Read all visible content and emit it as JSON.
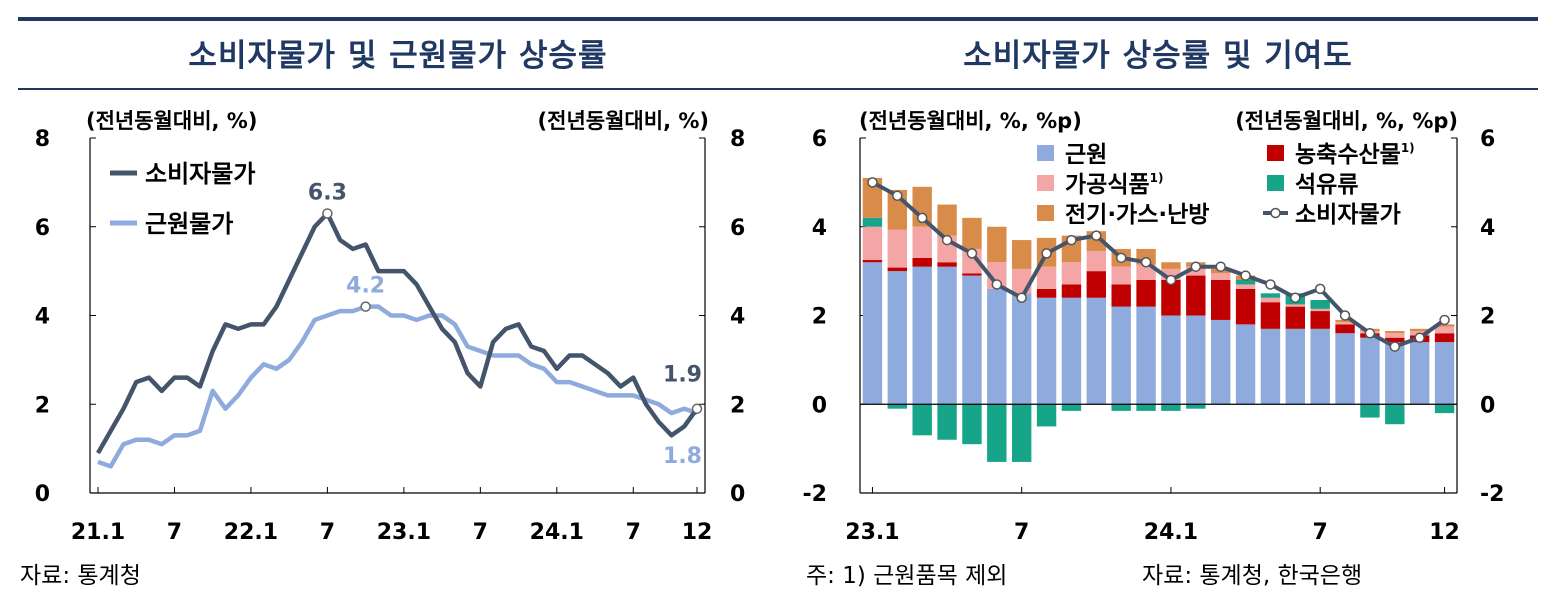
{
  "left_panel": {
    "title": "소비자물가 및 근원물가 상승률",
    "source": "자료: 통계청",
    "chart_data": {
      "type": "line",
      "title": "소비자물가 및 근원물가 상승률",
      "left_unit": "(전년동월대비, %)",
      "right_unit": "(전년동월대비, %)",
      "ylim": [
        0,
        8
      ],
      "yticks": [
        "0",
        "2",
        "4",
        "6",
        "8"
      ],
      "xticks": [
        {
          "index": 0,
          "label": "21.1"
        },
        {
          "index": 6,
          "label": "7"
        },
        {
          "index": 12,
          "label": "22.1"
        },
        {
          "index": 18,
          "label": "7"
        },
        {
          "index": 24,
          "label": "23.1"
        },
        {
          "index": 30,
          "label": "7"
        },
        {
          "index": 36,
          "label": "24.1"
        },
        {
          "index": 42,
          "label": "7"
        },
        {
          "index": 47,
          "label": "12"
        }
      ],
      "series": [
        {
          "name": "소비자물가",
          "color": "#44546a",
          "values": [
            0.9,
            1.4,
            1.9,
            2.5,
            2.6,
            2.3,
            2.6,
            2.6,
            2.4,
            3.2,
            3.8,
            3.7,
            3.8,
            3.8,
            4.2,
            4.8,
            5.4,
            6.0,
            6.3,
            5.7,
            5.5,
            5.6,
            5.0,
            5.0,
            5.0,
            4.7,
            4.2,
            3.7,
            3.4,
            2.7,
            2.4,
            3.4,
            3.7,
            3.8,
            3.3,
            3.2,
            2.8,
            3.1,
            3.1,
            2.9,
            2.7,
            2.4,
            2.6,
            2.0,
            1.6,
            1.3,
            1.5,
            1.9
          ]
        },
        {
          "name": "근원물가",
          "color": "#8faadc",
          "values": [
            0.7,
            0.6,
            1.1,
            1.2,
            1.2,
            1.1,
            1.3,
            1.3,
            1.4,
            2.3,
            1.9,
            2.2,
            2.6,
            2.9,
            2.8,
            3.0,
            3.4,
            3.9,
            4.0,
            4.1,
            4.1,
            4.2,
            4.2,
            4.0,
            4.0,
            3.9,
            4.0,
            4.0,
            3.8,
            3.3,
            3.2,
            3.1,
            3.1,
            3.1,
            2.9,
            2.8,
            2.5,
            2.5,
            2.4,
            2.3,
            2.2,
            2.2,
            2.2,
            2.1,
            2.0,
            1.8,
            1.9,
            1.8
          ]
        }
      ],
      "annotations": [
        {
          "series": 0,
          "index": 18,
          "text": "6.3"
        },
        {
          "series": 1,
          "index": 21,
          "text": "4.2"
        },
        {
          "series": 0,
          "index": 47,
          "text": "1.9"
        },
        {
          "series": 1,
          "index": 47,
          "text": "1.8"
        }
      ]
    }
  },
  "right_panel": {
    "title": "소비자물가 상승률 및 기여도",
    "note": "주: 1) 근원품목 제외",
    "source": "자료: 통계청, 한국은행",
    "chart_data": {
      "type": "bar",
      "stacked": true,
      "title": "소비자물가 상승률 및 기여도",
      "left_unit": "(전년동월대비, %, %p)",
      "right_unit": "(전년동월대비, %, %p)",
      "ylim": [
        -2,
        6
      ],
      "yticks": [
        "-2",
        "0",
        "2",
        "4",
        "6"
      ],
      "xticks": [
        {
          "index": 0,
          "label": "23.1"
        },
        {
          "index": 6,
          "label": "7"
        },
        {
          "index": 12,
          "label": "24.1"
        },
        {
          "index": 18,
          "label": "7"
        },
        {
          "index": 23,
          "label": "12"
        }
      ],
      "legend": [
        {
          "label": "근원",
          "sup": "",
          "color": "#8faadc",
          "kind": "box"
        },
        {
          "label": "농축수산물",
          "sup": "1)",
          "color": "#c00000",
          "kind": "box"
        },
        {
          "label": "가공식품",
          "sup": "1)",
          "color": "#f4a6a6",
          "kind": "box"
        },
        {
          "label": "석유류",
          "sup": "",
          "color": "#17a589",
          "kind": "box"
        },
        {
          "label": "전기·가스·난방",
          "sup": "",
          "color": "#d98c4a",
          "kind": "box"
        },
        {
          "label": "소비자물가",
          "sup": "",
          "color": "#44546a",
          "kind": "line"
        }
      ],
      "series": [
        {
          "name": "근원",
          "color": "#8faadc",
          "values": [
            3.2,
            3.0,
            3.1,
            3.1,
            2.9,
            2.6,
            2.5,
            2.4,
            2.4,
            2.4,
            2.2,
            2.2,
            2.0,
            2.0,
            1.9,
            1.8,
            1.7,
            1.7,
            1.7,
            1.6,
            1.5,
            1.4,
            1.4,
            1.4
          ]
        },
        {
          "name": "농축수산물",
          "color": "#c00000",
          "values": [
            0.05,
            0.08,
            0.2,
            0.1,
            0.05,
            0.0,
            0.0,
            0.2,
            0.3,
            0.6,
            0.5,
            0.6,
            0.8,
            0.9,
            0.9,
            0.8,
            0.6,
            0.5,
            0.4,
            0.2,
            0.1,
            0.1,
            0.15,
            0.2
          ]
        },
        {
          "name": "가공식품",
          "color": "#f4a6a6",
          "values": [
            0.75,
            0.85,
            0.7,
            0.6,
            0.55,
            0.6,
            0.55,
            0.5,
            0.5,
            0.45,
            0.4,
            0.35,
            0.25,
            0.2,
            0.15,
            0.1,
            0.1,
            0.05,
            0.05,
            0.05,
            0.05,
            0.1,
            0.1,
            0.15
          ]
        },
        {
          "name": "석유류",
          "color": "#17a589",
          "values": [
            0.2,
            -0.1,
            -0.7,
            -0.8,
            -0.9,
            -1.3,
            -1.3,
            -0.5,
            -0.15,
            0.0,
            -0.15,
            -0.15,
            -0.15,
            -0.1,
            0.0,
            0.1,
            0.1,
            0.25,
            0.2,
            0.0,
            -0.3,
            -0.45,
            0.0,
            -0.2
          ]
        },
        {
          "name": "전기·가스·난방",
          "color": "#d98c4a",
          "values": [
            0.9,
            0.9,
            0.9,
            0.7,
            0.7,
            0.8,
            0.65,
            0.65,
            0.6,
            0.45,
            0.4,
            0.35,
            0.15,
            0.1,
            0.1,
            0.1,
            0.0,
            0.0,
            0.0,
            0.05,
            0.05,
            0.05,
            0.05,
            0.05
          ]
        }
      ],
      "line": {
        "name": "소비자물가",
        "color": "#44546a",
        "values": [
          5.0,
          4.7,
          4.2,
          3.7,
          3.4,
          2.7,
          2.4,
          3.4,
          3.7,
          3.8,
          3.3,
          3.2,
          2.8,
          3.1,
          3.1,
          2.9,
          2.7,
          2.4,
          2.6,
          2.0,
          1.6,
          1.3,
          1.5,
          1.9
        ]
      }
    }
  }
}
